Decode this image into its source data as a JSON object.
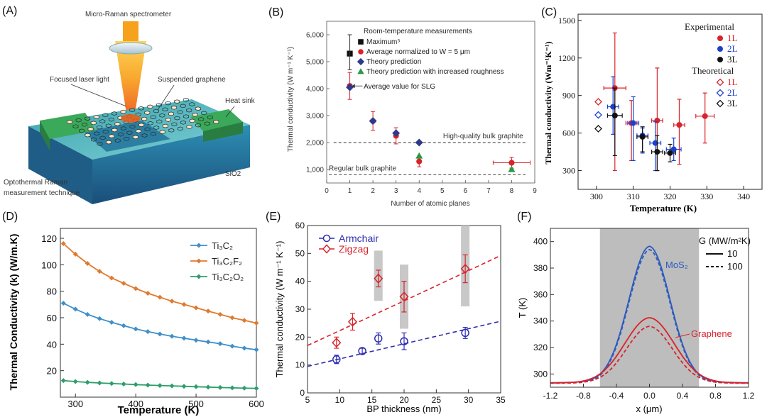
{
  "panels": {
    "A": {
      "label": "(A)",
      "spectrometer": "Micro-Raman spectrometer",
      "laser": "Focused laser light",
      "graphene": "Suspended graphene",
      "heatsink": "Heat sink",
      "sio2": "SiO2",
      "caption_line1": "Optothermal Raman",
      "caption_line2": "measurement technique"
    },
    "B": "(B)",
    "C": "(C)",
    "D": "(D)",
    "E": "(E)",
    "F": "(F)"
  },
  "colors": {
    "red": "#d9232a",
    "blue": "#2d3a8c",
    "green": "#2a9a45",
    "orange": "#e07a2e",
    "steel": "#3f8fc9",
    "teal": "#2e9e6b",
    "gray": "#bdbdbd"
  },
  "chart_data": [
    {
      "id": "B",
      "type": "scatter",
      "xlabel": "Number of atomic planes",
      "ylabel": "Thermal conductivity (W m⁻¹ K⁻¹)",
      "xlim": [
        0,
        9
      ],
      "ylim": [
        500,
        6500
      ],
      "xticks": [
        0,
        1,
        2,
        3,
        4,
        5,
        6,
        7,
        8,
        9
      ],
      "yticks": [
        1000,
        2000,
        3000,
        4000,
        5000,
        6000
      ],
      "ytick_labels": [
        "1,000",
        "2,000",
        "3,000",
        "4,000",
        "5,000",
        "6,000"
      ],
      "legend_title": "Room-temperature measurements",
      "legend": [
        "Maximum⁵",
        "Average normalized to W = 5 μm",
        "Theory prediction",
        "Theory prediction with increased roughness"
      ],
      "annotation": "Average value for SLG",
      "ref_lines": [
        {
          "y": 2000,
          "label": "High-quality bulk graphite"
        },
        {
          "y": 800,
          "label": "Regular bulk graphite"
        }
      ],
      "series": [
        {
          "name": "Maximum",
          "marker": "square",
          "color": "#111111",
          "points": [
            {
              "x": 1,
              "y": 5300
            }
          ]
        },
        {
          "name": "Average normalized",
          "marker": "circle",
          "color": "#d9232a",
          "points": [
            {
              "x": 1,
              "y": 4100,
              "err": 500
            },
            {
              "x": 2,
              "y": 2800,
              "err": 350
            },
            {
              "x": 3,
              "y": 2250,
              "err": 300
            },
            {
              "x": 4,
              "y": 1300,
              "err": 200
            },
            {
              "x": 8,
              "y": 1250,
              "err": 200,
              "xerr": 0.8
            }
          ]
        },
        {
          "name": "Theory prediction",
          "marker": "diamond",
          "color": "#2d3a8c",
          "points": [
            {
              "x": 1,
              "y": 4050
            },
            {
              "x": 2,
              "y": 2800
            },
            {
              "x": 3,
              "y": 2350
            },
            {
              "x": 4,
              "y": 2000
            }
          ]
        },
        {
          "name": "Theory increased roughness",
          "marker": "triangle",
          "color": "#2a9a45",
          "points": [
            {
              "x": 4,
              "y": 1500
            },
            {
              "x": 8,
              "y": 1000
            }
          ]
        }
      ]
    },
    {
      "id": "C",
      "type": "scatter",
      "xlabel": "Temperature (K)",
      "ylabel": "Thermal conductivity (Wm⁻¹K⁻¹)",
      "xlim": [
        295,
        345
      ],
      "ylim": [
        150,
        1550
      ],
      "xticks": [
        300,
        310,
        320,
        330,
        340
      ],
      "yticks": [
        300,
        600,
        900,
        1200,
        1500
      ],
      "legend_exp": "Experimental",
      "legend_theo": "Theoretical",
      "legend_items": [
        "1L",
        "2L",
        "3L"
      ],
      "series": [
        {
          "name": "Exp 1L",
          "color": "#d9232a",
          "points": [
            {
              "x": 305,
              "y": 960,
              "ylo": 300,
              "yhi": 1400,
              "xerr": 3
            },
            {
              "x": 309.5,
              "y": 680,
              "ylo": 380,
              "yhi": 860,
              "xerr": 1.5
            },
            {
              "x": 316.5,
              "y": 700,
              "ylo": 300,
              "yhi": 1120,
              "xerr": 1.5
            },
            {
              "x": 322.5,
              "y": 665,
              "ylo": 350,
              "yhi": 870,
              "xerr": 1.5
            },
            {
              "x": 329.5,
              "y": 735,
              "ylo": 520,
              "yhi": 920,
              "xerr": 2.5
            }
          ]
        },
        {
          "name": "Exp 2L",
          "color": "#1b3fcf",
          "points": [
            {
              "x": 304.5,
              "y": 810,
              "ylo": 590,
              "yhi": 1050,
              "xerr": 1.5
            },
            {
              "x": 310,
              "y": 680,
              "ylo": 380,
              "yhi": 890,
              "xerr": 1.5
            },
            {
              "x": 312.5,
              "y": 580,
              "ylo": 440,
              "yhi": 640,
              "xerr": 1.5
            },
            {
              "x": 316,
              "y": 520,
              "ylo": 300,
              "yhi": 690,
              "xerr": 1.5
            },
            {
              "x": 321,
              "y": 470,
              "ylo": 380,
              "yhi": 560,
              "xerr": 2
            }
          ]
        },
        {
          "name": "Exp 3L",
          "color": "#111111",
          "points": [
            {
              "x": 305,
              "y": 740,
              "ylo": 420,
              "yhi": 960,
              "xerr": 2
            },
            {
              "x": 312.5,
              "y": 570,
              "ylo": 450,
              "yhi": 650,
              "xerr": 1.5
            },
            {
              "x": 316.5,
              "y": 450,
              "ylo": 300,
              "yhi": 580,
              "xerr": 1.5
            },
            {
              "x": 320,
              "y": 440,
              "ylo": 370,
              "yhi": 510,
              "xerr": 1.5
            }
          ]
        },
        {
          "name": "Theo 1L",
          "color": "#d9232a",
          "open": true,
          "points": [
            {
              "x": 300.5,
              "y": 850
            }
          ]
        },
        {
          "name": "Theo 2L",
          "color": "#1b3fcf",
          "open": true,
          "points": [
            {
              "x": 300.5,
              "y": 745
            }
          ]
        },
        {
          "name": "Theo 3L",
          "color": "#111111",
          "open": true,
          "points": [
            {
              "x": 300.5,
              "y": 635
            }
          ]
        }
      ]
    },
    {
      "id": "D",
      "type": "line",
      "xlabel": "Temperature (K)",
      "ylabel": "Thermal Conductivity (k) (W/m.K)",
      "xlim": [
        275,
        600
      ],
      "ylim": [
        0,
        120
      ],
      "xticks": [
        300,
        400,
        500,
        600
      ],
      "yticks": [
        20,
        40,
        60,
        80,
        100,
        120
      ],
      "x": [
        280,
        300,
        320,
        340,
        360,
        380,
        400,
        420,
        440,
        460,
        480,
        500,
        520,
        540,
        560,
        580,
        600
      ],
      "series": [
        {
          "name": "Ti3C2",
          "color": "#3f8fc9",
          "values": [
            71,
            66.5,
            62.5,
            59.3,
            56.5,
            54,
            51.5,
            49.5,
            47.7,
            46,
            44.5,
            43,
            41.7,
            40.4,
            38.5,
            37,
            35.8
          ]
        },
        {
          "name": "Ti3C2F2",
          "color": "#e07a2e",
          "values": [
            116,
            108,
            101,
            95,
            90,
            86,
            82,
            78.5,
            75.5,
            72.5,
            70,
            67.5,
            65,
            62.5,
            60,
            58,
            56
          ]
        },
        {
          "name": "Ti3C2O2",
          "color": "#2e9e6b",
          "values": [
            12.5,
            11.8,
            11.2,
            10.7,
            10.3,
            9.9,
            9.5,
            9.1,
            8.8,
            8.5,
            8.2,
            7.9,
            7.6,
            7.3,
            7,
            6.8,
            6.6
          ]
        }
      ],
      "legend": [
        "Ti₃C₂",
        "Ti₃C₂F₂",
        "Ti₃C₂O₂"
      ]
    },
    {
      "id": "E",
      "type": "scatter",
      "xlabel": "BP thickness (nm)",
      "ylabel": "Thermal conductivity (W m⁻¹ K⁻¹)",
      "xlim": [
        5,
        35
      ],
      "ylim": [
        0,
        60
      ],
      "xticks": [
        5,
        10,
        15,
        20,
        25,
        30,
        35
      ],
      "yticks": [
        0,
        10,
        20,
        30,
        40,
        50,
        60
      ],
      "legend": [
        "Armchair",
        "Zigzag"
      ],
      "series": [
        {
          "name": "Armchair",
          "color": "#2d2db0",
          "points": [
            {
              "x": 9.5,
              "y": 12,
              "err": 1.5
            },
            {
              "x": 13.5,
              "y": 15,
              "err": 1
            },
            {
              "x": 16,
              "y": 19.5,
              "err": 2
            },
            {
              "x": 20,
              "y": 18.5,
              "err": 3
            },
            {
              "x": 29.5,
              "y": 21.5,
              "err": 2
            }
          ],
          "fit": {
            "a": 1.2,
            "b": 0.85,
            "xrange": [
              5,
              35
            ]
          }
        },
        {
          "name": "Zigzag",
          "color": "#d9232a",
          "points": [
            {
              "x": 9.5,
              "y": 18,
              "err": 2
            },
            {
              "x": 12,
              "y": 25.5,
              "err": 3
            },
            {
              "x": 16,
              "y": 41,
              "err": 3
            },
            {
              "x": 20,
              "y": 34.5,
              "err": 5.5
            },
            {
              "x": 29.5,
              "y": 44.5,
              "err": 5
            }
          ],
          "fit": {
            "a": 4,
            "b": 1.3,
            "xrange": [
              5,
              35
            ]
          }
        }
      ],
      "gray_bands": [
        {
          "x": 16,
          "lo": 33,
          "hi": 51
        },
        {
          "x": 20,
          "lo": 23,
          "hi": 46
        },
        {
          "x": 29.5,
          "lo": 31,
          "hi": 60
        }
      ]
    },
    {
      "id": "F",
      "type": "line",
      "xlabel": "x (μm)",
      "ylabel": "T (K)",
      "xlim": [
        -1.2,
        1.2
      ],
      "ylim": [
        290,
        410
      ],
      "xticks": [
        -1.2,
        -0.8,
        -0.4,
        0,
        0.4,
        0.8,
        1.2
      ],
      "xtick_labels": [
        "-1.2",
        "-0.8",
        "-0.4",
        "0.0",
        "0.4",
        "0.8",
        "1.2"
      ],
      "yticks": [
        300,
        320,
        340,
        360,
        380,
        400
      ],
      "shaded_region": [
        -0.6,
        0.6
      ],
      "legend_title": "G (MW/m²K)",
      "legend": [
        "10",
        "100"
      ],
      "labels": {
        "mos2": "MoS₂",
        "graphene": "Graphene"
      },
      "series": [
        {
          "name": "MoS2 G=10",
          "color": "#2d5bbd",
          "dash": false,
          "peak": 396.5,
          "base": 293,
          "width": 0.25,
          "outer": 0.5
        },
        {
          "name": "MoS2 G=100",
          "color": "#2d5bbd",
          "dash": true,
          "peak": 394,
          "base": 293,
          "width": 0.25,
          "outer": 0.3
        },
        {
          "name": "Graphene G=10",
          "color": "#d9232a",
          "dash": false,
          "peak": 342.5,
          "base": 293,
          "width": 0.3,
          "outer": 0.5
        },
        {
          "name": "Graphene G=100",
          "color": "#d9232a",
          "dash": true,
          "peak": 336,
          "base": 293,
          "width": 0.28,
          "outer": 0.35
        }
      ]
    }
  ]
}
